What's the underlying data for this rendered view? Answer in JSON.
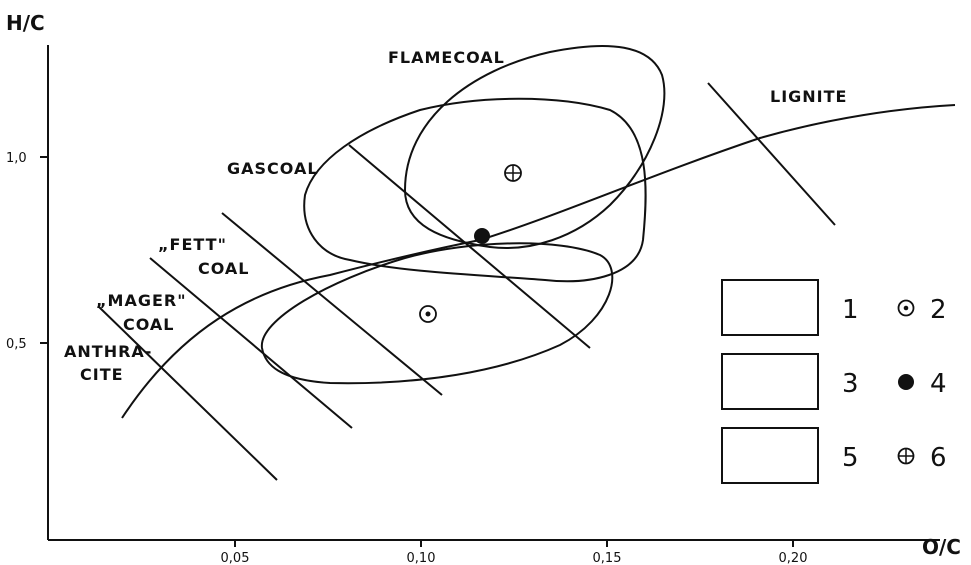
{
  "axes": {
    "y_label": "H/C",
    "x_label": "O/C",
    "x_ticks": [
      "0,05",
      "0,10",
      "0,15",
      "0,20"
    ],
    "y_ticks": [
      "0,5",
      "1,0"
    ]
  },
  "regions": {
    "flamecoal": "FLAMECOAL",
    "lignite": "LIGNITE",
    "gascoal": "GASCOAL",
    "fett_line1": "„FETT\"",
    "fett_line2": "COAL",
    "mager_line1": "„MAGER\"",
    "mager_line2": "COAL",
    "anthra_line1": "ANTHRA-",
    "anthra_line2": "CITE"
  },
  "legend": [
    {
      "box_number": "1",
      "pattern": "vertical-hatch",
      "symbol_number": "2",
      "symbol": "dot-in-circle"
    },
    {
      "box_number": "3",
      "pattern": "horizontal-hatch",
      "symbol_number": "4",
      "symbol": "filled-circle"
    },
    {
      "box_number": "5",
      "pattern": "diagonal-hatch",
      "symbol_number": "6",
      "symbol": "cross-in-circle"
    }
  ]
}
